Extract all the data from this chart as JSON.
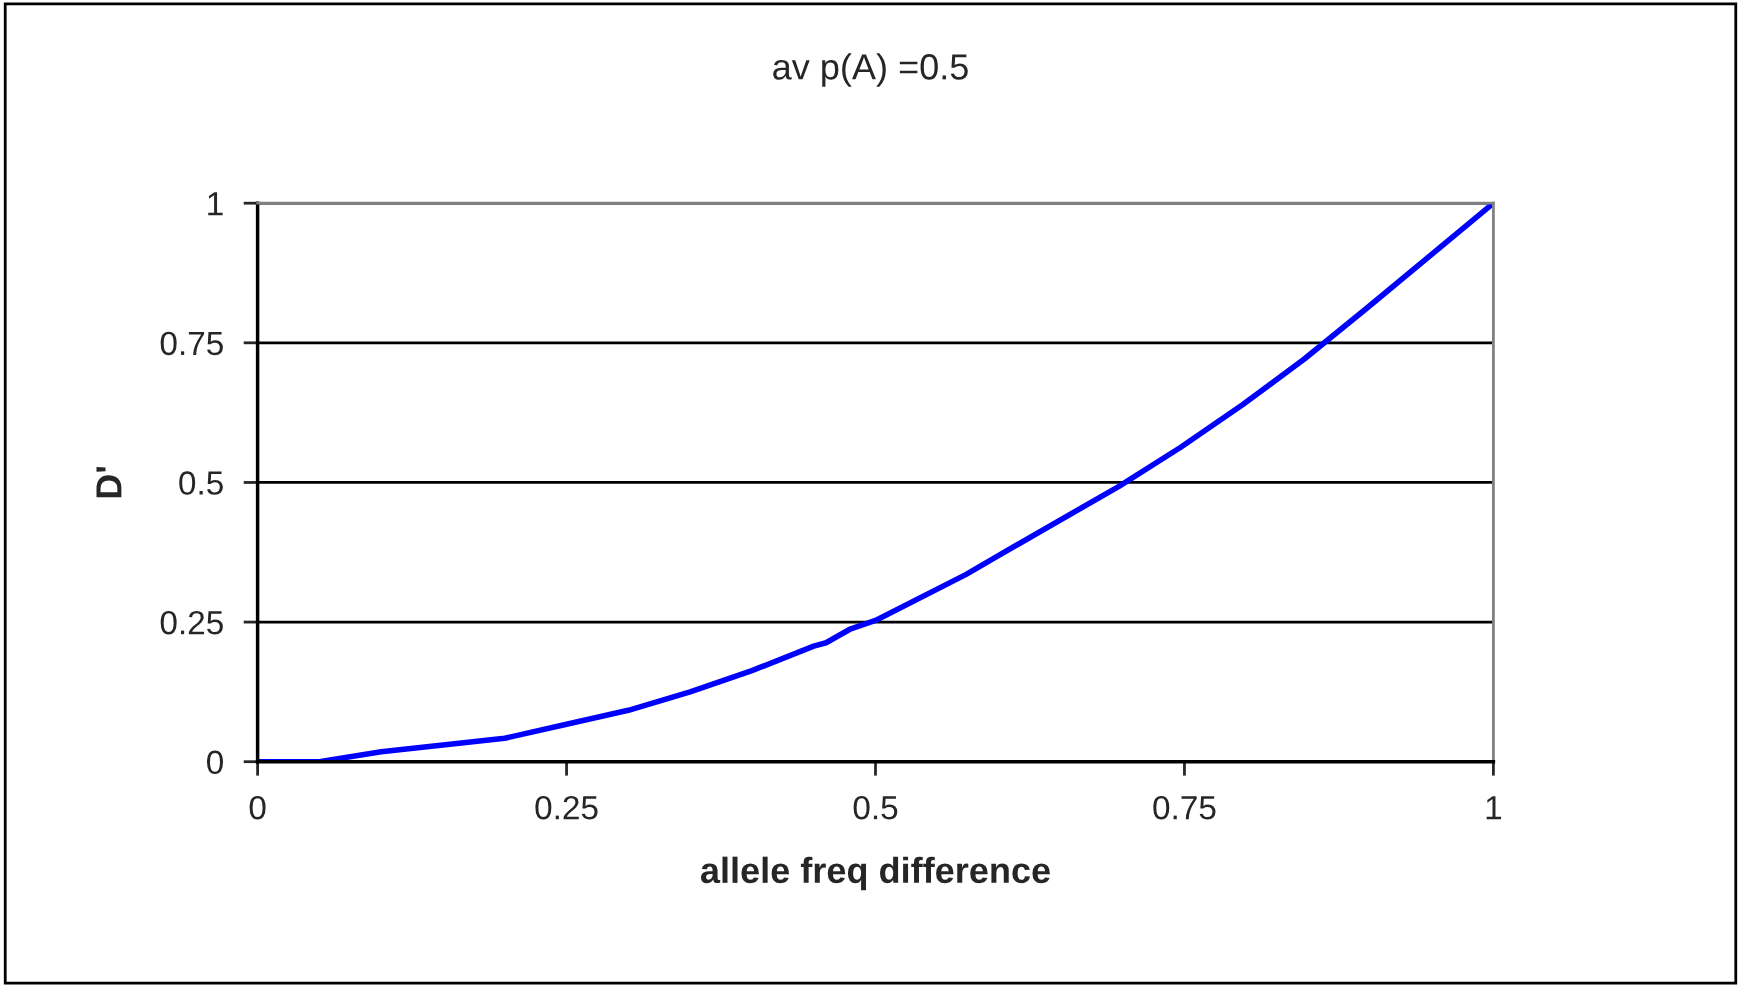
{
  "chart_data": {
    "type": "line",
    "title": "av p(A) =0.5",
    "xlabel": "allele freq difference",
    "ylabel": "D'",
    "x": [
      0,
      0.05,
      0.1,
      0.15,
      0.2,
      0.25,
      0.3,
      0.35,
      0.4,
      0.45,
      0.46,
      0.48,
      0.5,
      0.573,
      0.597,
      0.697,
      0.747,
      0.797,
      0.847,
      0.897,
      1.0
    ],
    "series": [
      {
        "color": "#0000ff",
        "values": [
          0,
          0,
          0.018,
          0.03,
          0.042,
          0.067,
          0.092,
          0.125,
          0.163,
          0.207,
          0.213,
          0.238,
          0.253,
          0.335,
          0.366,
          0.493,
          0.563,
          0.639,
          0.721,
          0.811,
          1.0
        ]
      }
    ],
    "xlim": [
      0,
      1
    ],
    "ylim": [
      0,
      1
    ],
    "xticks": [
      0,
      0.25,
      0.5,
      0.75,
      1
    ],
    "yticks": [
      0,
      0.25,
      0.5,
      0.75,
      1
    ],
    "grid": "y",
    "legend": false,
    "marker": "none",
    "line_style": "solid"
  }
}
